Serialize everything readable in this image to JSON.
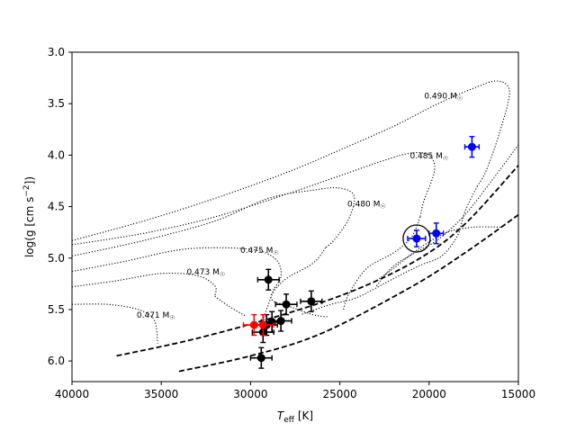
{
  "chart_data": {
    "type": "scatter",
    "title": "",
    "xlabel": "T",
    "xlabel_sub": "eff",
    "xlabel_unit": " [K]",
    "ylabel": "log(g [cm s",
    "ylabel_sup": "−2",
    "ylabel_end": "])",
    "xlim": [
      40000,
      15000
    ],
    "ylim": [
      6.2,
      3.0
    ],
    "x_reversed": true,
    "y_reversed": true,
    "grid": false,
    "xticks": [
      40000,
      35000,
      30000,
      25000,
      20000,
      15000
    ],
    "xtick_labels": [
      "40000",
      "35000",
      "30000",
      "25000",
      "20000",
      "15000"
    ],
    "yticks": [
      3.0,
      3.5,
      4.0,
      4.5,
      5.0,
      5.5,
      6.0
    ],
    "ytick_labels": [
      "3.0",
      "3.5",
      "4.0",
      "4.5",
      "5.0",
      "5.5",
      "6.0"
    ],
    "tracks": [
      {
        "mass_label": "0.490 M",
        "label_at": [
          19200,
          3.45
        ],
        "points": [
          [
            40000,
            4.83
          ],
          [
            36000,
            4.64
          ],
          [
            32000,
            4.42
          ],
          [
            28000,
            4.17
          ],
          [
            25000,
            3.95
          ],
          [
            22000,
            3.72
          ],
          [
            19500,
            3.5
          ],
          [
            17500,
            3.35
          ],
          [
            16200,
            3.28
          ],
          [
            15500,
            3.38
          ],
          [
            16000,
            3.75
          ],
          [
            16800,
            4.15
          ],
          [
            17300,
            4.3
          ]
        ]
      },
      {
        "mass_label": "0.485 M",
        "label_at": [
          20000,
          4.03
        ],
        "points": [
          [
            40000,
            4.87
          ],
          [
            36000,
            4.76
          ],
          [
            32000,
            4.6
          ],
          [
            28000,
            4.38
          ],
          [
            25000,
            4.2
          ],
          [
            22500,
            4.05
          ],
          [
            21000,
            3.98
          ],
          [
            20000,
            4.0
          ],
          [
            19700,
            4.15
          ],
          [
            20300,
            4.45
          ],
          [
            20500,
            4.6
          ]
        ]
      },
      {
        "mass_label": "0.480 M",
        "label_at": [
          23500,
          4.5
        ],
        "points": [
          [
            40000,
            4.98
          ],
          [
            36000,
            4.83
          ],
          [
            32000,
            4.64
          ],
          [
            29000,
            4.42
          ],
          [
            26500,
            4.34
          ],
          [
            25000,
            4.32
          ],
          [
            24200,
            4.4
          ],
          [
            24500,
            4.62
          ],
          [
            25300,
            4.82
          ],
          [
            25800,
            4.9
          ]
        ]
      },
      {
        "mass_label": "0.475 M",
        "label_at": [
          29500,
          4.95
        ],
        "points": [
          [
            40000,
            5.13
          ],
          [
            37000,
            5.03
          ],
          [
            34000,
            4.92
          ],
          [
            31500,
            4.9
          ],
          [
            29500,
            4.93
          ],
          [
            28500,
            5.03
          ],
          [
            28300,
            5.18
          ],
          [
            28700,
            5.3
          ]
        ]
      },
      {
        "mass_label": "0.473 M",
        "label_at": [
          32500,
          5.16
        ],
        "points": [
          [
            40000,
            5.28
          ],
          [
            37500,
            5.22
          ],
          [
            35000,
            5.15
          ],
          [
            33000,
            5.17
          ],
          [
            32000,
            5.27
          ],
          [
            32000,
            5.37
          ]
        ]
      },
      {
        "mass_label": "0.471 M",
        "label_at": [
          35300,
          5.58
        ],
        "points": [
          [
            40000,
            5.45
          ],
          [
            38000,
            5.45
          ],
          [
            36300,
            5.5
          ],
          [
            35400,
            5.6
          ],
          [
            35200,
            5.83
          ]
        ]
      }
    ],
    "track_lobes": [
      {
        "points": [
          [
            17300,
            4.3
          ],
          [
            18000,
            4.55
          ],
          [
            18400,
            4.78
          ],
          [
            19300,
            4.98
          ],
          [
            20500,
            5.07
          ],
          [
            22000,
            5.2
          ],
          [
            24000,
            5.38
          ],
          [
            25500,
            5.45
          ],
          [
            27200,
            5.55
          ]
        ]
      },
      {
        "points": [
          [
            15000,
            3.9
          ],
          [
            16500,
            4.25
          ],
          [
            18000,
            4.58
          ],
          [
            19500,
            4.82
          ],
          [
            20800,
            4.95
          ],
          [
            22000,
            5.08
          ],
          [
            23000,
            5.28
          ]
        ]
      },
      {
        "points": [
          [
            20500,
            4.6
          ],
          [
            21000,
            4.8
          ],
          [
            22000,
            4.95
          ],
          [
            23500,
            5.1
          ],
          [
            24500,
            5.35
          ],
          [
            24800,
            5.5
          ]
        ]
      },
      {
        "points": [
          [
            25800,
            4.9
          ],
          [
            26500,
            5.05
          ],
          [
            28000,
            5.2
          ],
          [
            28800,
            5.35
          ],
          [
            28700,
            5.42
          ],
          [
            28000,
            5.46
          ],
          [
            26500,
            5.55
          ],
          [
            25700,
            5.57
          ]
        ]
      },
      {
        "points": [
          [
            28700,
            5.3
          ],
          [
            29000,
            5.45
          ],
          [
            29200,
            5.55
          ],
          [
            29200,
            5.62
          ]
        ]
      },
      {
        "points": [
          [
            32000,
            5.37
          ],
          [
            31200,
            5.47
          ],
          [
            30300,
            5.56
          ]
        ]
      },
      {
        "points": [
          [
            16000,
            4.7
          ],
          [
            17500,
            4.7
          ],
          [
            19000,
            4.75
          ],
          [
            20500,
            4.9
          ],
          [
            22000,
            5.1
          ],
          [
            22800,
            5.2
          ]
        ]
      }
    ],
    "zams_lines": [
      {
        "points": [
          [
            37500,
            5.95
          ],
          [
            33000,
            5.78
          ],
          [
            28000,
            5.54
          ],
          [
            24000,
            5.3
          ],
          [
            20500,
            5.0
          ],
          [
            18000,
            4.67
          ],
          [
            15000,
            4.1
          ]
        ]
      },
      {
        "points": [
          [
            34000,
            6.1
          ],
          [
            30000,
            5.95
          ],
          [
            26000,
            5.73
          ],
          [
            21000,
            5.28
          ],
          [
            18000,
            4.95
          ],
          [
            15000,
            4.58
          ]
        ]
      }
    ],
    "series": [
      {
        "color": "#000000",
        "points": [
          {
            "x": 29000,
            "y": 5.21,
            "xerr": 600,
            "yerr": 0.1
          },
          {
            "x": 28000,
            "y": 5.45,
            "xerr": 600,
            "yerr": 0.1
          },
          {
            "x": 26600,
            "y": 5.42,
            "xerr": 600,
            "yerr": 0.1
          },
          {
            "x": 28300,
            "y": 5.61,
            "xerr": 600,
            "yerr": 0.1
          },
          {
            "x": 28800,
            "y": 5.62,
            "xerr": 600,
            "yerr": 0.1
          },
          {
            "x": 29100,
            "y": 5.65,
            "xerr": 600,
            "yerr": 0.1
          },
          {
            "x": 29300,
            "y": 5.72,
            "xerr": 600,
            "yerr": 0.1
          },
          {
            "x": 29400,
            "y": 5.97,
            "xerr": 600,
            "yerr": 0.1
          }
        ]
      },
      {
        "color": "#ff0000",
        "points": [
          {
            "x": 29800,
            "y": 5.65,
            "xerr": 600,
            "yerr": 0.1
          },
          {
            "x": 29300,
            "y": 5.65,
            "xerr": 600,
            "yerr": 0.1
          }
        ]
      },
      {
        "color": "#0000ff",
        "points": [
          {
            "x": 17600,
            "y": 3.92,
            "xerr": 400,
            "yerr": 0.1
          },
          {
            "x": 20700,
            "y": 4.81,
            "xerr": 500,
            "yerr": 0.08
          },
          {
            "x": 19600,
            "y": 4.76,
            "xerr": 400,
            "yerr": 0.1
          }
        ]
      }
    ],
    "circled_point": {
      "x": 20700,
      "y": 4.81
    }
  }
}
